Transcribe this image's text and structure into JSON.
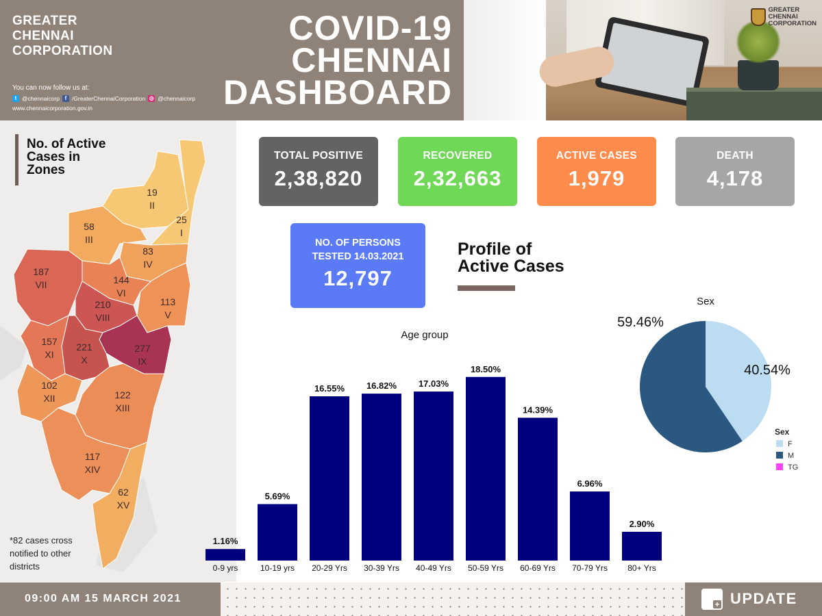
{
  "header": {
    "org_name": "GREATER\nCHENNAI\nCORPORATION",
    "follow_text": "You can now follow us at:",
    "twitter": "@chennaicorp",
    "facebook": "/GreaterChennaiCorporation",
    "instagram": "@chennaicorp",
    "website": "www.chennaicorporation.gov.in",
    "title": "COVID-19\nCHENNAI\nDASHBOARD",
    "logo_text": "GREATER\nCHENNAI\nCORPORATION"
  },
  "map": {
    "title": "No. of Active\nCases in\nZones",
    "footnote": "*82 cases cross notified to other districts",
    "zones": [
      {
        "roman": "II",
        "cases": "19",
        "color": "#f6c873"
      },
      {
        "roman": "I",
        "cases": "25",
        "color": "#f6c873"
      },
      {
        "roman": "III",
        "cases": "58",
        "color": "#f2aa5f"
      },
      {
        "roman": "IV",
        "cases": "83",
        "color": "#f0a15c"
      },
      {
        "roman": "V",
        "cases": "113",
        "color": "#ee9257"
      },
      {
        "roman": "VI",
        "cases": "144",
        "color": "#e98355"
      },
      {
        "roman": "VII",
        "cases": "187",
        "color": "#da6656"
      },
      {
        "roman": "VIII",
        "cases": "210",
        "color": "#cc5654"
      },
      {
        "roman": "IX",
        "cases": "277",
        "color": "#a83352"
      },
      {
        "roman": "X",
        "cases": "221",
        "color": "#c7534f"
      },
      {
        "roman": "XI",
        "cases": "157",
        "color": "#e37756"
      },
      {
        "roman": "XII",
        "cases": "102",
        "color": "#ed9759"
      },
      {
        "roman": "XIII",
        "cases": "122",
        "color": "#ec8d58"
      },
      {
        "roman": "XIV",
        "cases": "117",
        "color": "#ec8f58"
      },
      {
        "roman": "XV",
        "cases": "62",
        "color": "#f2ad60"
      }
    ]
  },
  "cards": {
    "total_positive": {
      "label": "TOTAL POSITIVE",
      "value": "2,38,820",
      "color": "#636363"
    },
    "recovered": {
      "label": "RECOVERED",
      "value": "2,32,663",
      "color": "#6fd957"
    },
    "active": {
      "label": "ACTIVE CASES",
      "value": "1,979",
      "color": "#fd8b4c"
    },
    "death": {
      "label": "DEATH",
      "value": "4,178",
      "color": "#a6a6a6"
    },
    "tested": {
      "label": "NO. OF PERSONS\nTESTED 14.03.2021",
      "value": "12,797",
      "color": "#5a7af6"
    }
  },
  "profile": {
    "title": "Profile of\nActive Cases"
  },
  "footer": {
    "timestamp": "09:00 AM 15 MARCH 2021",
    "update_label": "UPDATE"
  },
  "chart_data": [
    {
      "type": "bar",
      "title": "Age group",
      "categories": [
        "0-9 yrs",
        "10-19 yrs",
        "20-29 Yrs",
        "30-39 Yrs",
        "40-49 Yrs",
        "50-59 Yrs",
        "60-69 Yrs",
        "70-79 Yrs",
        "80+ Yrs"
      ],
      "values": [
        1.16,
        5.69,
        16.55,
        16.82,
        17.03,
        18.5,
        14.39,
        6.96,
        2.9
      ],
      "data_labels": [
        "1.16%",
        "5.69%",
        "16.55%",
        "16.82%",
        "17.03%",
        "18.50%",
        "14.39%",
        "6.96%",
        "2.90%"
      ],
      "ylim": [
        0,
        20
      ],
      "grid": false,
      "color": "#00007f"
    },
    {
      "type": "pie",
      "title": "Sex",
      "labels": [
        "F",
        "M",
        "TG"
      ],
      "values": [
        40.54,
        59.46,
        0
      ],
      "data_labels": [
        "40.54%",
        "59.46%",
        ""
      ],
      "colors": [
        "#bcdcf1",
        "#2b5880",
        "#ff40ff"
      ],
      "legend_title": "Sex",
      "legend_position": "bottom-right"
    }
  ]
}
